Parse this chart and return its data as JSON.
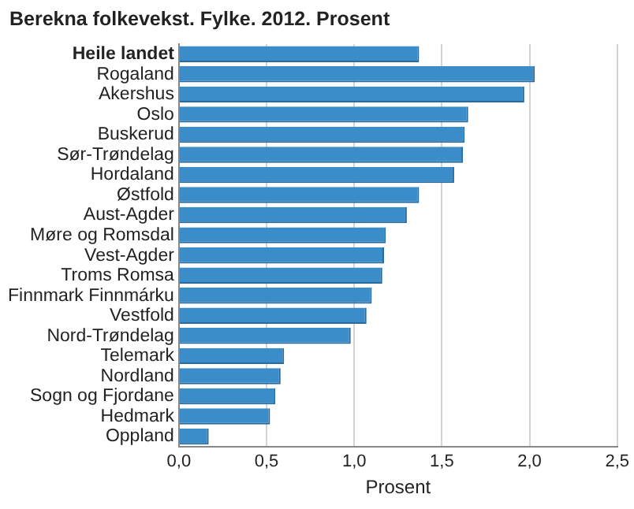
{
  "chart_data": {
    "type": "bar",
    "orientation": "horizontal",
    "title": "Berekna folkevekst.  Fylke. 2012. Prosent",
    "xlabel": "Prosent",
    "categories": [
      "Heile landet",
      "Rogaland",
      "Akershus",
      "Oslo",
      "Buskerud",
      "Sør-Trøndelag",
      "Hordaland",
      "Østfold",
      "Aust-Agder",
      "Møre og Romsdal",
      "Vest-Agder",
      "Troms Romsa",
      "Finnmark Finnmárku",
      "Vestfold",
      "Nord-Trøndelag",
      "Telemark",
      "Nordland",
      "Sogn og Fjordane",
      "Hedmark",
      "Oppland"
    ],
    "values": [
      1.37,
      2.03,
      1.97,
      1.65,
      1.63,
      1.62,
      1.57,
      1.37,
      1.3,
      1.18,
      1.17,
      1.16,
      1.1,
      1.07,
      0.98,
      0.6,
      0.58,
      0.55,
      0.52,
      0.17
    ],
    "color": "#3a8dc8",
    "xlim": [
      0,
      2.5
    ],
    "xticks": [
      {
        "value": 0,
        "label": "0,0"
      },
      {
        "value": 0.5,
        "label": "0,5"
      },
      {
        "value": 1,
        "label": "1,0"
      },
      {
        "value": 1.5,
        "label": "1,5"
      },
      {
        "value": 2,
        "label": "2,0"
      },
      {
        "value": 2.5,
        "label": "2,5"
      }
    ],
    "grid": "x",
    "legend": false
  }
}
